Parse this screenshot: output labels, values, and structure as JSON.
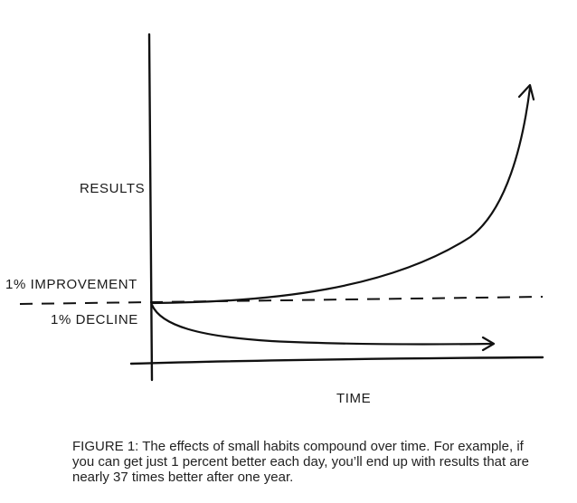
{
  "figure": {
    "labels": {
      "y_axis": "RESULTS",
      "x_axis": "TIME",
      "improvement": "1% IMPROVEMENT",
      "decline": "1% DECLINE"
    },
    "caption": "FIGURE 1: The effects of small habits compound over time. For example, if you can get just 1 percent better each day, you’ll end up with results that are nearly 37 times better after one year."
  },
  "colors": {
    "ink": "#111111",
    "background": "#ffffff"
  }
}
